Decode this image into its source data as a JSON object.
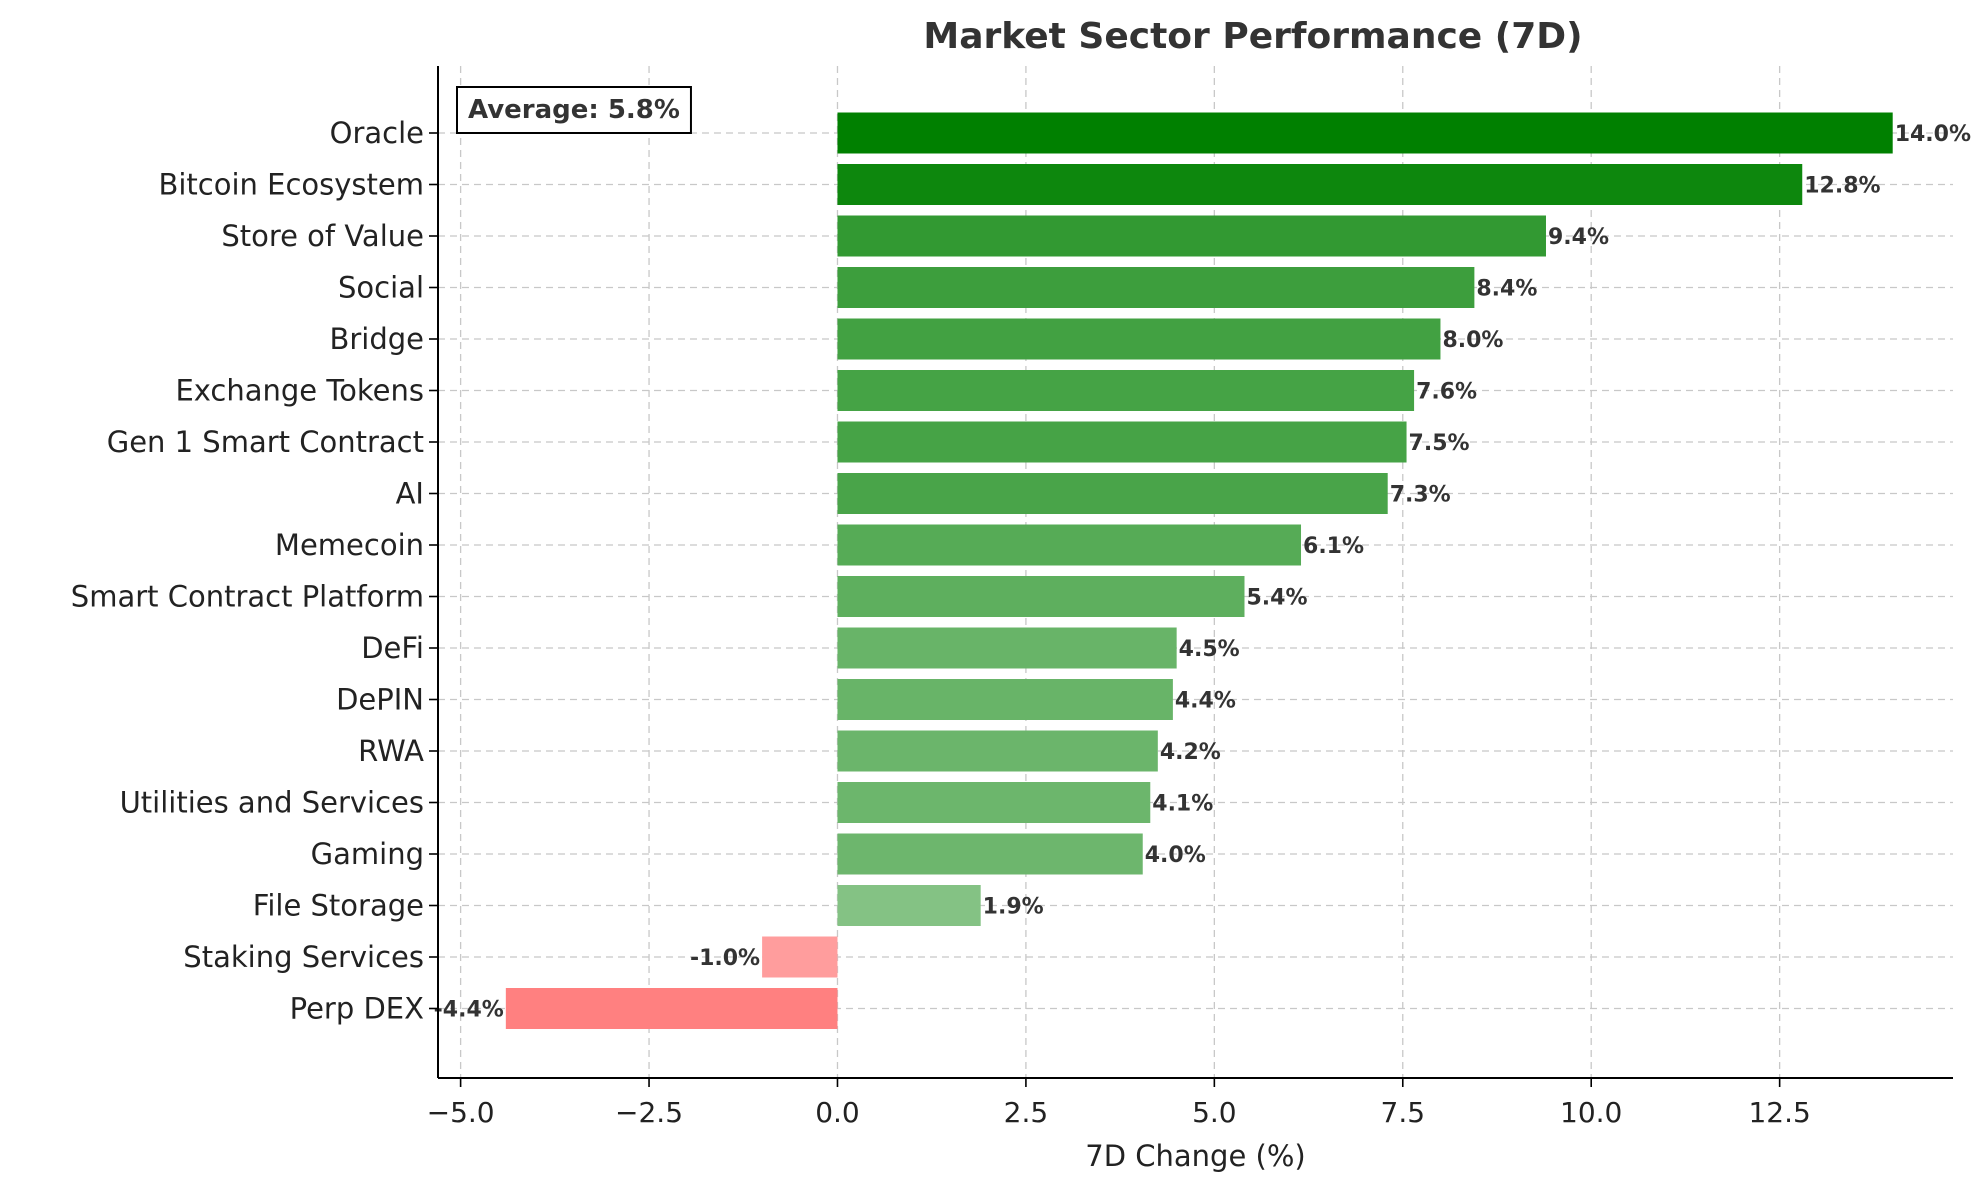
{
  "chart_data": {
    "type": "bar",
    "orientation": "horizontal",
    "title": "Market Sector Performance (7D)",
    "xlabel": "7D Change (%)",
    "ylabel": "",
    "xlim": [
      -5.3,
      14.8
    ],
    "xticks": [
      -5.0,
      -2.5,
      0.0,
      2.5,
      5.0,
      7.5,
      10.0,
      12.5
    ],
    "xtick_labels": [
      "−5.0",
      "−2.5",
      "0.0",
      "2.5",
      "5.0",
      "7.5",
      "10.0",
      "12.5"
    ],
    "grid": true,
    "average_label": "Average: 5.8%",
    "categories": [
      "Oracle",
      "Bitcoin Ecosystem",
      "Store of Value",
      "Social",
      "Bridge",
      "Exchange Tokens",
      "Gen 1 Smart Contract",
      "AI",
      "Memecoin",
      "Smart Contract Platform",
      "DeFi",
      "DePIN",
      "RWA",
      "Utilities and Services",
      "Gaming",
      "File Storage",
      "Staking Services",
      "Perp DEX"
    ],
    "values": [
      14.0,
      12.8,
      9.4,
      8.45,
      8.0,
      7.65,
      7.55,
      7.3,
      6.15,
      5.4,
      4.5,
      4.45,
      4.25,
      4.15,
      4.05,
      1.9,
      -1.0,
      -4.4
    ],
    "value_labels": [
      "14.0%",
      "12.8%",
      "9.4%",
      "8.4%",
      "8.0%",
      "7.6%",
      "7.5%",
      "7.3%",
      "6.1%",
      "5.4%",
      "4.5%",
      "4.4%",
      "4.2%",
      "4.1%",
      "4.0%",
      "1.9%",
      "-1.0%",
      "-4.4%"
    ],
    "colors": {
      "positive": "#008000",
      "negative": "#ff0000",
      "text": "#333333",
      "grid": "#c8c8c8"
    }
  }
}
